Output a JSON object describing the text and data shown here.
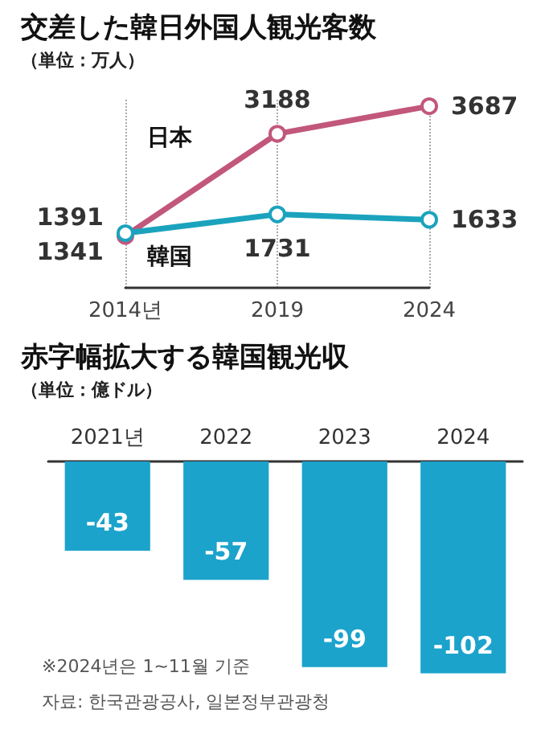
{
  "chart_data": [
    {
      "type": "line",
      "title": "交差した韓日外国人観光客数",
      "subtitle": "（単位：万人）",
      "categories": [
        "2014년",
        "2019",
        "2024"
      ],
      "series": [
        {
          "name": "日本",
          "color": "#c2577c",
          "values": [
            1341,
            3188,
            3687
          ]
        },
        {
          "name": "韓国",
          "color": "#1ba3bd",
          "values": [
            1391,
            1731,
            1633
          ]
        }
      ],
      "data_labels": true,
      "marker": "circle",
      "grid": "x",
      "legend": false
    },
    {
      "type": "bar",
      "title": "赤字幅拡大する韓国観光収",
      "subtitle": "（単位：億ドル）",
      "categories": [
        "2021년",
        "2022",
        "2023",
        "2024"
      ],
      "values": [
        -43,
        -57,
        -99,
        -102
      ],
      "color": "#1ba3cc",
      "data_labels": true,
      "annotations": [
        "※2024년은 1~11월 기준",
        "자료: 한국관광공사, 일본정부관광청"
      ]
    }
  ]
}
